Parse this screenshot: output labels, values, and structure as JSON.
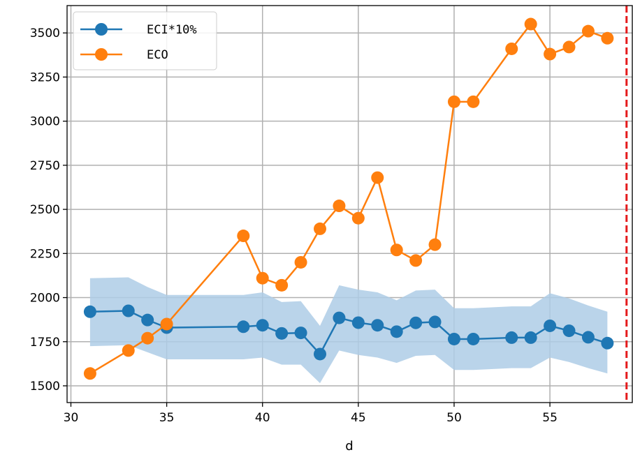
{
  "chart_data": {
    "type": "line",
    "xlabel": "d",
    "ylabel": "",
    "xlim": [
      29.8,
      59.3
    ],
    "ylim": [
      1405,
      3655
    ],
    "xticks": [
      30,
      35,
      40,
      45,
      50,
      55
    ],
    "yticks": [
      1500,
      1750,
      2000,
      2250,
      2500,
      2750,
      3000,
      3250,
      3500
    ],
    "grid": true,
    "legend_position": "top-left",
    "colors": {
      "eci": "#1f77b4",
      "eco": "#ff7f0e",
      "band": "#aecde6",
      "vline": "#e41a1c",
      "grid": "#b0b0b0"
    },
    "reference_line": {
      "x": 59,
      "style": "dashed"
    },
    "series": [
      {
        "name": "ECI*10%",
        "x": [
          31,
          33,
          34,
          35,
          39,
          40,
          41,
          42,
          43,
          44,
          45,
          46,
          47,
          48,
          49,
          50,
          51,
          53,
          54,
          55,
          56,
          57,
          58
        ],
        "y": [
          1920,
          1925,
          1873,
          1830,
          1835,
          1843,
          1797,
          1800,
          1680,
          1885,
          1858,
          1843,
          1807,
          1857,
          1862,
          1765,
          1765,
          1773,
          1773,
          1840,
          1812,
          1775,
          1742
        ],
        "band_upper": [
          2110,
          2115,
          2060,
          2015,
          2015,
          2030,
          1975,
          1980,
          1840,
          2070,
          2045,
          2030,
          1985,
          2040,
          2045,
          1940,
          1940,
          1950,
          1950,
          2025,
          1995,
          1955,
          1920
        ],
        "band_lower": [
          1725,
          1730,
          1690,
          1650,
          1650,
          1660,
          1620,
          1620,
          1515,
          1700,
          1675,
          1660,
          1630,
          1670,
          1675,
          1590,
          1590,
          1600,
          1600,
          1660,
          1635,
          1600,
          1570
        ]
      },
      {
        "name": "ECO",
        "x": [
          31,
          33,
          34,
          35,
          39,
          40,
          41,
          42,
          43,
          44,
          45,
          46,
          47,
          48,
          49,
          50,
          51,
          53,
          54,
          55,
          56,
          57,
          58
        ],
        "y": [
          1570,
          1700,
          1770,
          1850,
          2350,
          2110,
          2070,
          2200,
          2390,
          2520,
          2450,
          2680,
          2270,
          2210,
          2300,
          3110,
          3110,
          3410,
          3550,
          3380,
          3420,
          3510,
          3470
        ]
      }
    ]
  }
}
